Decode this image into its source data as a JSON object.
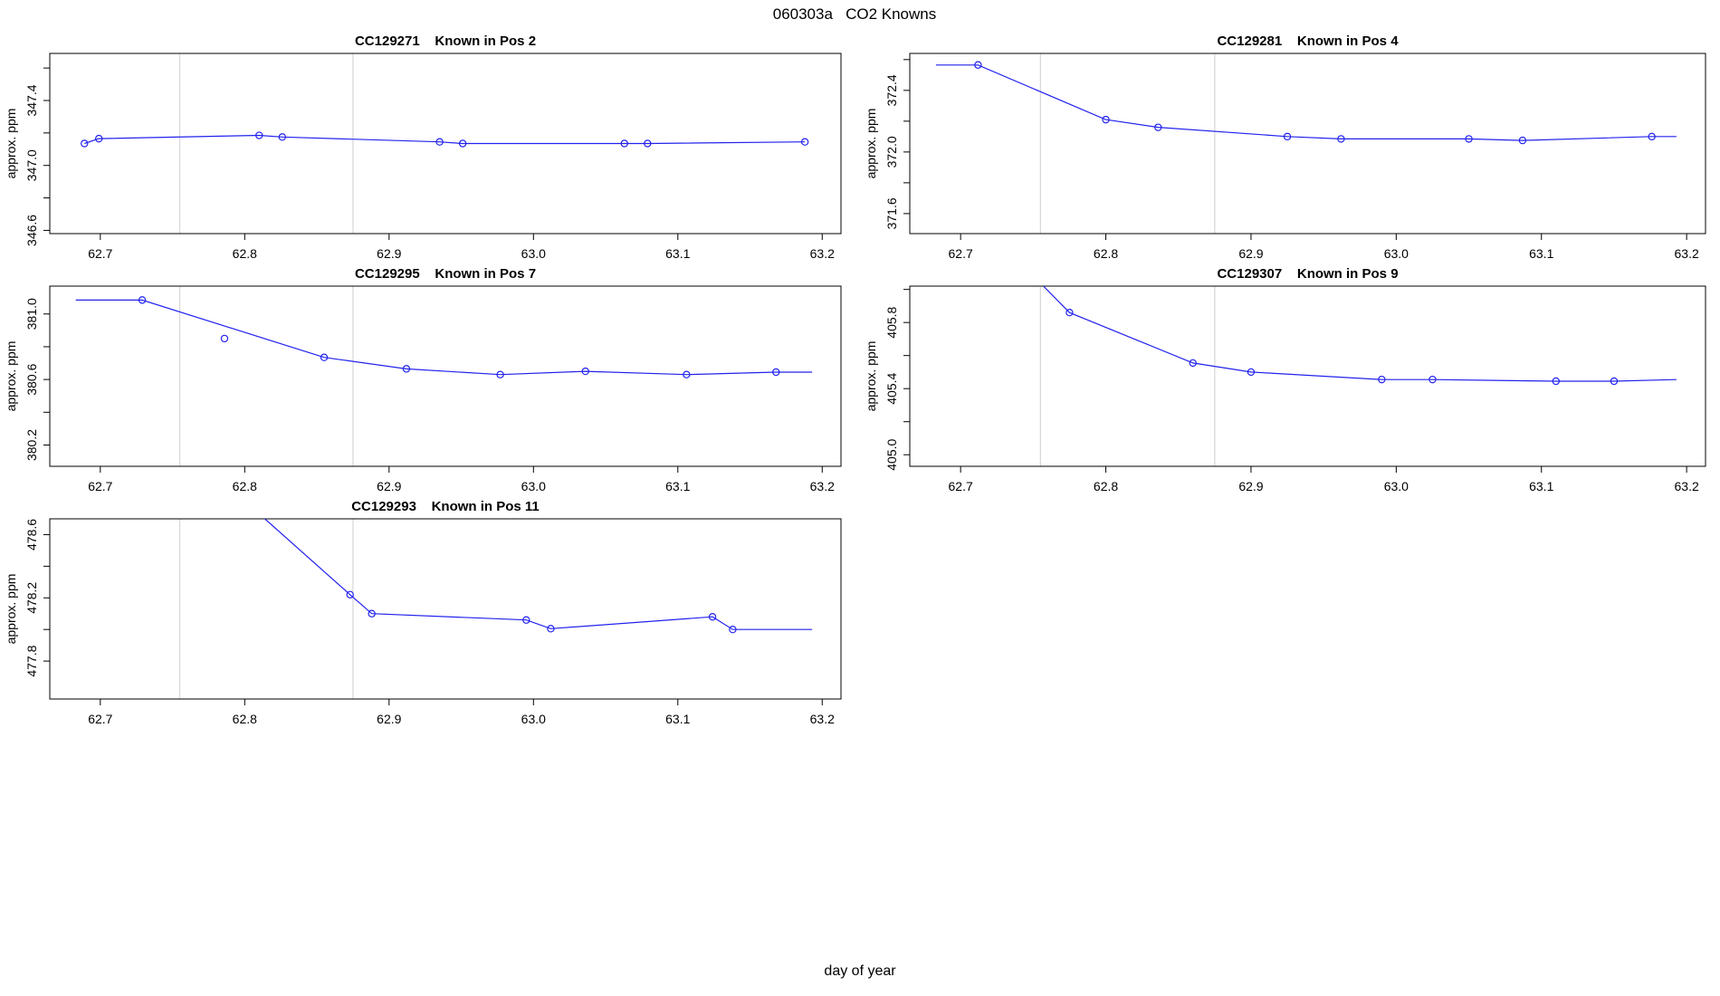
{
  "title": "060303a   CO2 Knowns",
  "colors": {
    "line": "#2222ee",
    "point": "#2222ee",
    "gridline": "#d9d9d9",
    "axis": "#000000",
    "background": "#ffffff"
  },
  "chart_data": {
    "type": "line",
    "title": "060303a   CO2 Knowns",
    "xlabel": "day of year",
    "ylabel": "approx. ppm",
    "xlim": [
      62.665,
      63.213
    ],
    "x_ticks": [
      62.7,
      62.8,
      62.9,
      63.0,
      63.1,
      63.2
    ],
    "gridlines_x": [
      62.755,
      62.875
    ],
    "legend": "none",
    "grid": "two light vertical reference lines per panel",
    "panels": [
      {
        "id": "CC129271",
        "pos_label": "Known in Pos 2",
        "title": "CC129271    Known in Pos 2",
        "row": 0,
        "col": 0,
        "ylim": [
          346.58,
          347.69
        ],
        "y_ticks_labeled": [
          346.6,
          347.0,
          347.4
        ],
        "y_ticks_minor": [
          346.8,
          347.2,
          347.6
        ],
        "line": [
          [
            62.689,
            347.135
          ],
          [
            62.699,
            347.165
          ],
          [
            62.81,
            347.185
          ],
          [
            62.826,
            347.175
          ],
          [
            62.935,
            347.145
          ],
          [
            62.951,
            347.135
          ],
          [
            63.063,
            347.135
          ],
          [
            63.079,
            347.135
          ],
          [
            63.188,
            347.145
          ]
        ],
        "points": [
          [
            62.689,
            347.135
          ],
          [
            62.699,
            347.165
          ],
          [
            62.81,
            347.185
          ],
          [
            62.826,
            347.175
          ],
          [
            62.935,
            347.145
          ],
          [
            62.951,
            347.135
          ],
          [
            63.063,
            347.135
          ],
          [
            63.079,
            347.135
          ],
          [
            63.188,
            347.145
          ]
        ],
        "extra_points": []
      },
      {
        "id": "CC129281",
        "pos_label": "Known in Pos 4",
        "title": "CC129281    Known in Pos 4",
        "row": 0,
        "col": 1,
        "ylim": [
          371.47,
          372.64
        ],
        "y_ticks_labeled": [
          371.6,
          372.0,
          372.4
        ],
        "y_ticks_minor": [
          371.8,
          372.2,
          372.6
        ],
        "line": [
          [
            62.683,
            372.565
          ],
          [
            62.712,
            372.565
          ],
          [
            62.8,
            372.21
          ],
          [
            62.836,
            372.16
          ],
          [
            62.925,
            372.1
          ],
          [
            62.962,
            372.085
          ],
          [
            63.05,
            372.085
          ],
          [
            63.087,
            372.075
          ],
          [
            63.176,
            372.1
          ],
          [
            63.193,
            372.1
          ]
        ],
        "points": [
          [
            62.712,
            372.565
          ],
          [
            62.8,
            372.21
          ],
          [
            62.836,
            372.16
          ],
          [
            62.925,
            372.1
          ],
          [
            62.962,
            372.085
          ],
          [
            63.05,
            372.085
          ],
          [
            63.087,
            372.075
          ],
          [
            63.176,
            372.1
          ]
        ],
        "extra_points": []
      },
      {
        "id": "CC129295",
        "pos_label": "Known in Pos 7",
        "title": "CC129295    Known in Pos 7",
        "row": 1,
        "col": 0,
        "ylim": [
          380.07,
          381.17
        ],
        "y_ticks_labeled": [
          380.2,
          380.6,
          381.0
        ],
        "y_ticks_minor": [
          380.4,
          380.8
        ],
        "line": [
          [
            62.683,
            381.085
          ],
          [
            62.729,
            381.085
          ],
          [
            62.855,
            380.735
          ],
          [
            62.912,
            380.665
          ],
          [
            62.977,
            380.63
          ],
          [
            63.036,
            380.65
          ],
          [
            63.106,
            380.63
          ],
          [
            63.168,
            380.645
          ],
          [
            63.193,
            380.645
          ]
        ],
        "points": [
          [
            62.729,
            381.085
          ],
          [
            62.855,
            380.735
          ],
          [
            62.912,
            380.665
          ],
          [
            62.977,
            380.63
          ],
          [
            63.036,
            380.65
          ],
          [
            63.106,
            380.63
          ],
          [
            63.168,
            380.645
          ]
        ],
        "extra_points": [
          [
            62.786,
            380.85
          ]
        ]
      },
      {
        "id": "CC129307",
        "pos_label": "Known in Pos 9",
        "title": "CC129307    Known in Pos 9",
        "row": 1,
        "col": 1,
        "ylim": [
          404.93,
          406.02
        ],
        "y_ticks_labeled": [
          405.0,
          405.4,
          405.8
        ],
        "y_ticks_minor": [
          405.2,
          405.6,
          406.0
        ],
        "line": [
          [
            62.757,
            406.02
          ],
          [
            62.775,
            405.86
          ],
          [
            62.86,
            405.555
          ],
          [
            62.9,
            405.5
          ],
          [
            62.99,
            405.455
          ],
          [
            63.025,
            405.455
          ],
          [
            63.11,
            405.445
          ],
          [
            63.15,
            405.445
          ],
          [
            63.193,
            405.455
          ]
        ],
        "points": [
          [
            62.775,
            405.86
          ],
          [
            62.86,
            405.555
          ],
          [
            62.9,
            405.5
          ],
          [
            62.99,
            405.455
          ],
          [
            63.025,
            405.455
          ],
          [
            63.11,
            405.445
          ],
          [
            63.15,
            405.445
          ]
        ],
        "extra_points": []
      },
      {
        "id": "CC129293",
        "pos_label": "Known in Pos 11",
        "title": "CC129293    Known in Pos 11",
        "row": 2,
        "col": 0,
        "ylim": [
          477.56,
          478.7
        ],
        "y_ticks_labeled": [
          477.8,
          478.2,
          478.6
        ],
        "y_ticks_minor": [
          478.0,
          478.4
        ],
        "line": [
          [
            62.814,
            478.7
          ],
          [
            62.873,
            478.22
          ],
          [
            62.888,
            478.1
          ],
          [
            62.995,
            478.06
          ],
          [
            63.012,
            478.005
          ],
          [
            63.124,
            478.08
          ],
          [
            63.138,
            478.0
          ],
          [
            63.193,
            478.0
          ]
        ],
        "points": [
          [
            62.873,
            478.22
          ],
          [
            62.888,
            478.1
          ],
          [
            62.995,
            478.06
          ],
          [
            63.012,
            478.005
          ],
          [
            63.124,
            478.08
          ],
          [
            63.138,
            478.0
          ]
        ],
        "extra_points": []
      }
    ]
  }
}
